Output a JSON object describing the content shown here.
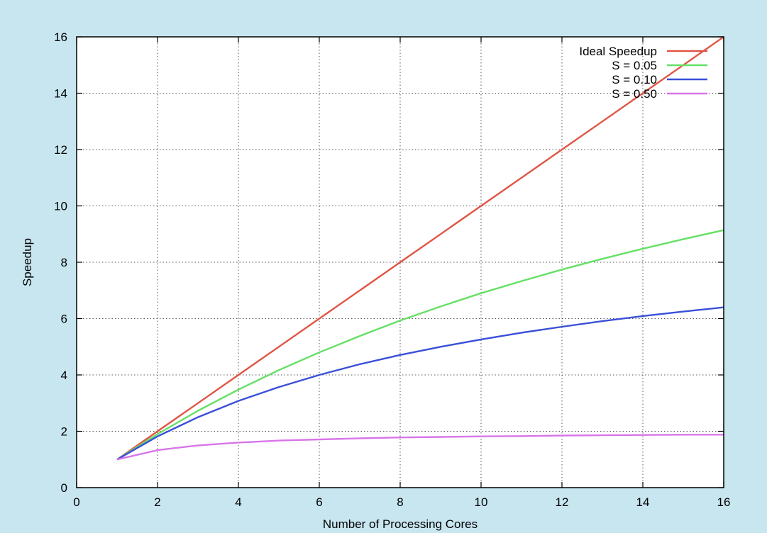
{
  "chart_data": {
    "type": "line",
    "title": "",
    "xlabel": "Number of Processing Cores",
    "ylabel": "Speedup",
    "xlim": [
      0,
      16
    ],
    "ylim": [
      0,
      16
    ],
    "xticks": [
      0,
      2,
      4,
      6,
      8,
      10,
      12,
      14,
      16
    ],
    "yticks": [
      0,
      2,
      4,
      6,
      8,
      10,
      12,
      14,
      16
    ],
    "grid": true,
    "legend_position": "top-right",
    "x": [
      1,
      2,
      3,
      4,
      5,
      6,
      7,
      8,
      9,
      10,
      11,
      12,
      13,
      14,
      15,
      16
    ],
    "series": [
      {
        "name": "Ideal Speedup",
        "color": "#e05545",
        "values": [
          1,
          2,
          3,
          4,
          5,
          6,
          7,
          8,
          9,
          10,
          11,
          12,
          13,
          14,
          15,
          16
        ]
      },
      {
        "name": "S = 0.05",
        "color": "#66e066",
        "values": [
          1,
          1.9,
          2.73,
          3.48,
          4.17,
          4.8,
          5.38,
          5.93,
          6.43,
          6.9,
          7.33,
          7.74,
          8.12,
          8.48,
          8.82,
          9.14
        ]
      },
      {
        "name": "S = 0.10",
        "color": "#3a4fd8",
        "values": [
          1,
          1.82,
          2.5,
          3.08,
          3.57,
          4.0,
          4.38,
          4.71,
          5.0,
          5.26,
          5.5,
          5.71,
          5.91,
          6.09,
          6.25,
          6.4
        ]
      },
      {
        "name": "S = 0.50",
        "color": "#d875e8",
        "values": [
          1,
          1.33,
          1.5,
          1.6,
          1.67,
          1.71,
          1.75,
          1.78,
          1.8,
          1.82,
          1.83,
          1.85,
          1.86,
          1.87,
          1.88,
          1.88
        ]
      }
    ]
  }
}
